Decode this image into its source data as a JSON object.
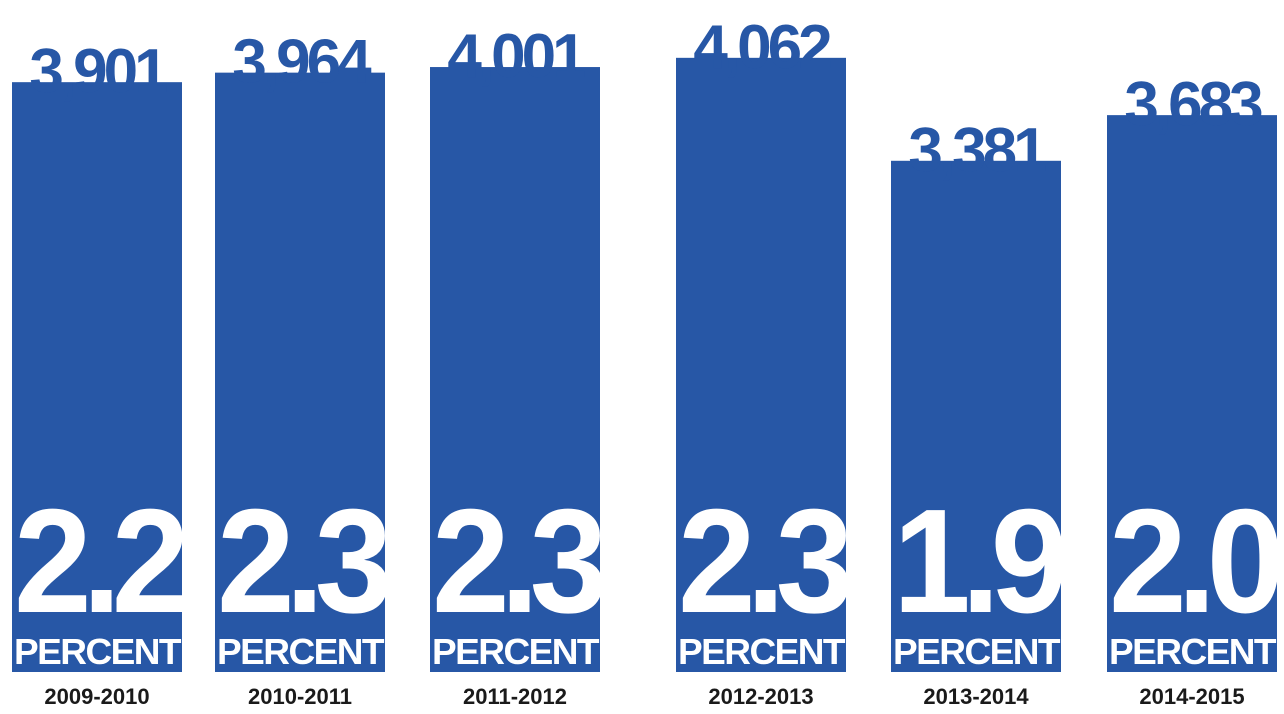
{
  "chart_data": {
    "type": "bar",
    "categories": [
      "2009-2010",
      "2010-2011",
      "2011-2012",
      "2012-2013",
      "2013-2014",
      "2014-2015"
    ],
    "values": [
      3901,
      3964,
      4001,
      4062,
      3381,
      3683
    ],
    "value_labels": [
      "3,901",
      "3,964",
      "4,001",
      "4,062",
      "3,381",
      "3,683"
    ],
    "percent_labels": [
      "2.2",
      "2.3",
      "2.3",
      "2.3",
      "1.9",
      "2.0"
    ],
    "percent_unit_label": "PERCENT",
    "title": "",
    "xlabel": "",
    "ylabel": "",
    "ylim": [
      0,
      4062
    ],
    "grid": false,
    "legend": "none"
  },
  "colors": {
    "bar": "#2757a6",
    "bar_text": "#ffffff",
    "category_text": "#1a1a1a",
    "background": "#ffffff"
  }
}
